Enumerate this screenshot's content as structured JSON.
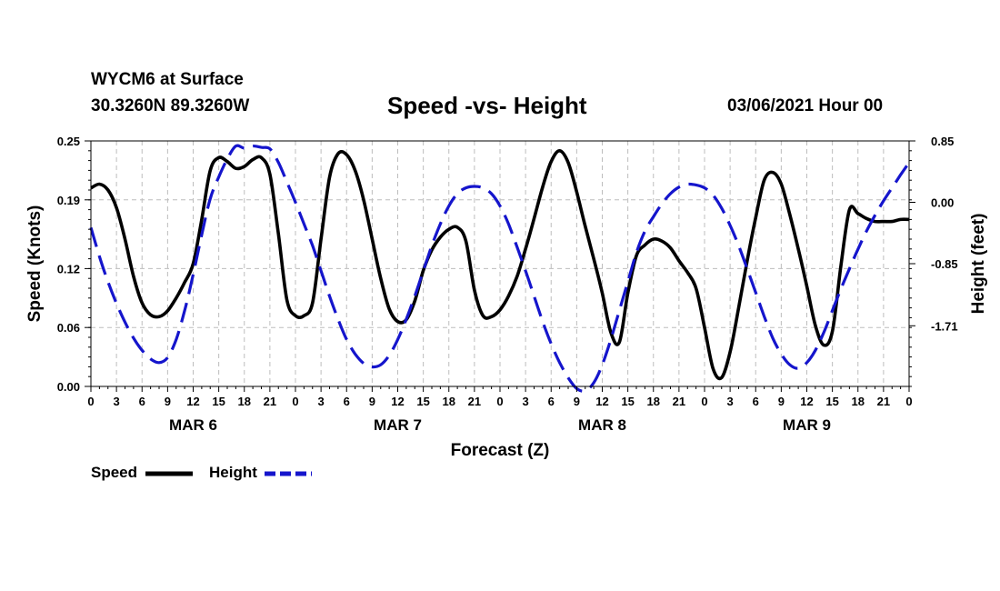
{
  "header": {
    "station": "WYCM6 at Surface",
    "coords": "30.3260N 89.3260W",
    "title": "Speed -vs- Height",
    "datetime": "03/06/2021 Hour 00"
  },
  "chart_data": {
    "type": "line",
    "title": "Speed -vs- Height",
    "xlabel": "Forecast (Z)",
    "ylabel_left": "Speed (Knots)",
    "ylabel_right": "Height (feet)",
    "x_unit": "forecast hours from 03/06/2021 00Z",
    "xlim": [
      0,
      96
    ],
    "x_tick_labels": [
      "0",
      "3",
      "6",
      "9",
      "12",
      "15",
      "18",
      "21",
      "0",
      "3",
      "6",
      "9",
      "12",
      "15",
      "18",
      "21",
      "0",
      "3",
      "6",
      "9",
      "12",
      "15",
      "18",
      "21",
      "0",
      "3",
      "6",
      "9",
      "12",
      "15",
      "18",
      "21",
      "0"
    ],
    "day_labels": [
      {
        "label": "MAR 6",
        "hour": 12
      },
      {
        "label": "MAR 7",
        "hour": 36
      },
      {
        "label": "MAR 8",
        "hour": 60
      },
      {
        "label": "MAR 9",
        "hour": 84
      }
    ],
    "y_left": {
      "lim": [
        0,
        0.25
      ],
      "ticks": [
        0.25,
        0.19,
        0.12,
        0.06,
        0.0
      ],
      "tick_labels": [
        "0.25",
        "0.19",
        "0.12",
        "0.06",
        "0.00"
      ]
    },
    "y_right": {
      "lim": [
        -2.55,
        0.85
      ],
      "ticks": [
        0.85,
        0.0,
        -0.85,
        -1.71
      ],
      "tick_labels": [
        "0.85",
        "0.00",
        "-0.85",
        "-1.71"
      ]
    },
    "grid": true,
    "legend_position": "bottom-left",
    "series": [
      {
        "name": "Speed",
        "axis": "left",
        "color": "#000000",
        "style": "solid",
        "x": [
          0,
          1,
          2,
          3,
          4,
          5,
          6,
          7,
          8,
          9,
          10,
          11,
          12,
          13,
          14,
          15,
          16,
          17,
          18,
          19,
          20,
          21,
          22,
          23,
          24,
          25,
          26,
          27,
          28,
          29,
          30,
          31,
          32,
          33,
          34,
          35,
          36,
          37,
          38,
          39,
          40,
          41,
          42,
          43,
          44,
          45,
          46,
          47,
          48,
          49,
          50,
          51,
          52,
          53,
          54,
          55,
          56,
          57,
          58,
          59,
          60,
          61,
          62,
          63,
          64,
          65,
          66,
          67,
          68,
          69,
          70,
          71,
          72,
          73,
          74,
          75,
          76,
          77,
          78,
          79,
          80,
          81,
          82,
          83,
          84,
          85,
          86,
          87,
          88,
          89,
          90,
          91,
          92,
          93,
          94,
          95,
          96
        ],
        "values": [
          0.202,
          0.206,
          0.2,
          0.182,
          0.15,
          0.112,
          0.085,
          0.073,
          0.071,
          0.077,
          0.09,
          0.106,
          0.125,
          0.17,
          0.22,
          0.233,
          0.229,
          0.222,
          0.224,
          0.231,
          0.233,
          0.216,
          0.155,
          0.088,
          0.072,
          0.072,
          0.085,
          0.15,
          0.213,
          0.237,
          0.236,
          0.22,
          0.19,
          0.15,
          0.11,
          0.079,
          0.066,
          0.068,
          0.087,
          0.118,
          0.139,
          0.152,
          0.16,
          0.162,
          0.148,
          0.098,
          0.072,
          0.071,
          0.078,
          0.092,
          0.112,
          0.14,
          0.171,
          0.203,
          0.229,
          0.24,
          0.228,
          0.198,
          0.163,
          0.13,
          0.095,
          0.055,
          0.045,
          0.095,
          0.133,
          0.144,
          0.15,
          0.148,
          0.141,
          0.128,
          0.116,
          0.1,
          0.06,
          0.018,
          0.009,
          0.035,
          0.08,
          0.128,
          0.172,
          0.21,
          0.218,
          0.206,
          0.175,
          0.14,
          0.102,
          0.062,
          0.042,
          0.056,
          0.123,
          0.18,
          0.176,
          0.171,
          0.168,
          0.168,
          0.168,
          0.17,
          0.17
        ]
      },
      {
        "name": "Height",
        "axis": "right",
        "color": "#1515cc",
        "style": "dashed",
        "x": [
          0,
          1,
          2,
          3,
          4,
          5,
          6,
          7,
          8,
          9,
          10,
          11,
          12,
          13,
          14,
          15,
          16,
          17,
          18,
          19,
          20,
          21,
          22,
          23,
          24,
          25,
          26,
          27,
          28,
          29,
          30,
          31,
          32,
          33,
          34,
          35,
          36,
          37,
          38,
          39,
          40,
          41,
          42,
          43,
          44,
          45,
          46,
          47,
          48,
          49,
          50,
          51,
          52,
          53,
          54,
          55,
          56,
          57,
          58,
          59,
          60,
          61,
          62,
          63,
          64,
          65,
          66,
          67,
          68,
          69,
          70,
          71,
          72,
          73,
          74,
          75,
          76,
          77,
          78,
          79,
          80,
          81,
          82,
          83,
          84,
          85,
          86,
          87,
          88,
          89,
          90,
          91,
          92,
          93,
          94,
          95,
          96
        ],
        "values": [
          -0.35,
          -0.75,
          -1.1,
          -1.4,
          -1.66,
          -1.88,
          -2.05,
          -2.17,
          -2.22,
          -2.15,
          -1.9,
          -1.5,
          -1.0,
          -0.45,
          0.05,
          0.35,
          0.6,
          0.78,
          0.75,
          0.78,
          0.76,
          0.74,
          0.55,
          0.28,
          0.0,
          -0.3,
          -0.6,
          -0.95,
          -1.3,
          -1.62,
          -1.9,
          -2.1,
          -2.23,
          -2.28,
          -2.25,
          -2.12,
          -1.9,
          -1.62,
          -1.3,
          -0.95,
          -0.6,
          -0.3,
          -0.05,
          0.12,
          0.2,
          0.22,
          0.2,
          0.12,
          -0.05,
          -0.3,
          -0.62,
          -0.95,
          -1.3,
          -1.65,
          -1.96,
          -2.22,
          -2.43,
          -2.58,
          -2.61,
          -2.5,
          -2.25,
          -1.9,
          -1.5,
          -1.1,
          -0.7,
          -0.4,
          -0.2,
          -0.02,
          0.12,
          0.21,
          0.25,
          0.24,
          0.2,
          0.1,
          -0.08,
          -0.32,
          -0.6,
          -0.92,
          -1.25,
          -1.58,
          -1.88,
          -2.1,
          -2.25,
          -2.3,
          -2.22,
          -2.05,
          -1.8,
          -1.5,
          -1.2,
          -0.92,
          -0.65,
          -0.4,
          -0.18,
          0.02,
          0.2,
          0.38,
          0.55
        ]
      }
    ]
  },
  "legend": {
    "items": [
      {
        "label": "Speed",
        "color": "#000000",
        "style": "solid"
      },
      {
        "label": "Height",
        "color": "#1515cc",
        "style": "dashed"
      }
    ]
  }
}
